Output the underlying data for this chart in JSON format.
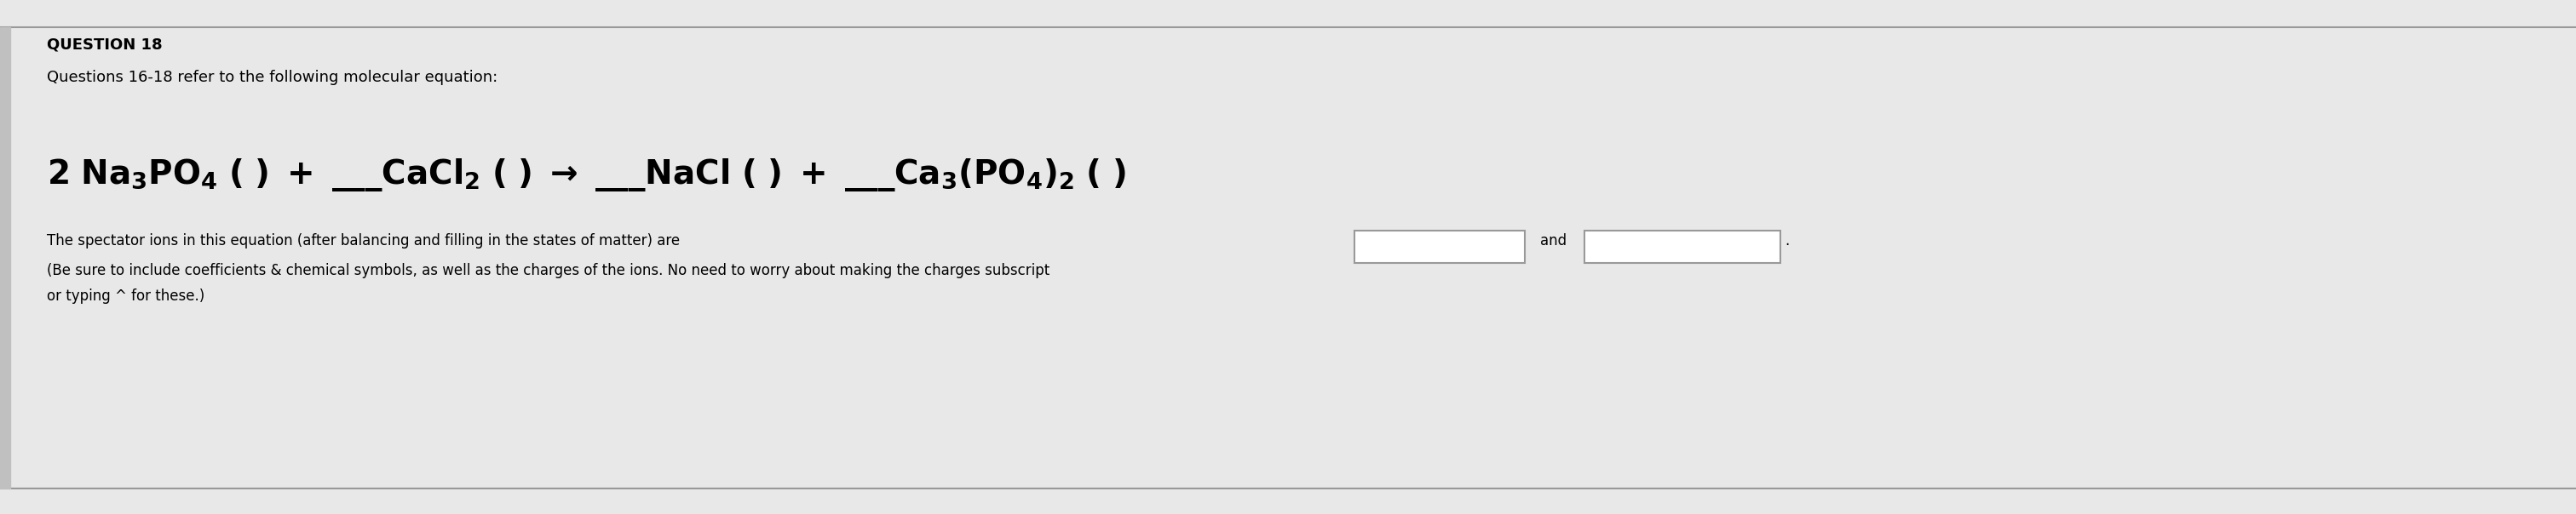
{
  "bg_color": "#e8e8e8",
  "content_bg": "#f0f0f0",
  "question_label": "QUESTION 18",
  "subtitle": "Questions 16-18 refer to the following molecular equation:",
  "equation_parts": [
    {
      "text": "2 Na",
      "style": "normal"
    },
    {
      "text": "3",
      "style": "sub"
    },
    {
      "text": "PO",
      "style": "normal"
    },
    {
      "text": "4",
      "style": "sub"
    },
    {
      "text": " (  ) +  ___CaCl",
      "style": "normal"
    },
    {
      "text": "2",
      "style": "sub"
    },
    {
      "text": " (  )  →  ___NaCl (  ) +  ___Ca",
      "style": "normal"
    },
    {
      "text": "3",
      "style": "sub"
    },
    {
      "text": "(PO",
      "style": "normal"
    },
    {
      "text": "4",
      "style": "sub"
    },
    {
      "text": ")",
      "style": "normal"
    },
    {
      "text": "2",
      "style": "sub"
    },
    {
      "text": " (  )",
      "style": "normal"
    }
  ],
  "question_text_line1": "The spectator ions in this equation (after balancing and filling in the states of matter) are",
  "question_text_line2": "(Be sure to include coefficients & chemical symbols, as well as the charges of the ions. No need to worry about making the charges subscript",
  "question_text_line3": "or typing ^ for these.)",
  "and_text": "and",
  "separator_color": "#999999",
  "text_color": "#000000",
  "question_label_color": "#000000",
  "box_color": "#ffffff",
  "box_border": "#999999"
}
